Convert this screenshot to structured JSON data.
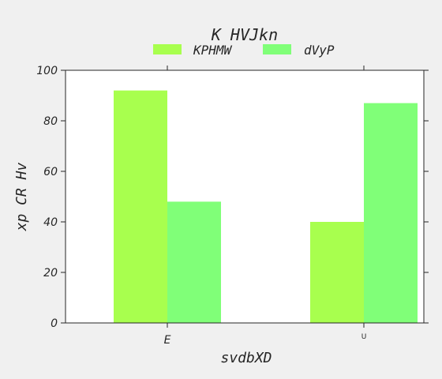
{
  "chart_data": {
    "type": "bar",
    "title": "K HVJkn",
    "xlabel": "svdbXD",
    "ylabel": "xp CR Hv",
    "categories": [
      "E",
      "U"
    ],
    "series": [
      {
        "name": "KPHMW",
        "values": [
          92,
          40
        ],
        "color": "#a8ff4e"
      },
      {
        "name": "dVyP",
        "values": [
          48,
          87
        ],
        "color": "#80ff78"
      }
    ],
    "ylim": [
      0,
      100
    ],
    "yticks": [
      0,
      20,
      40,
      60,
      80,
      100
    ],
    "grid": false,
    "legend": "top-center"
  }
}
